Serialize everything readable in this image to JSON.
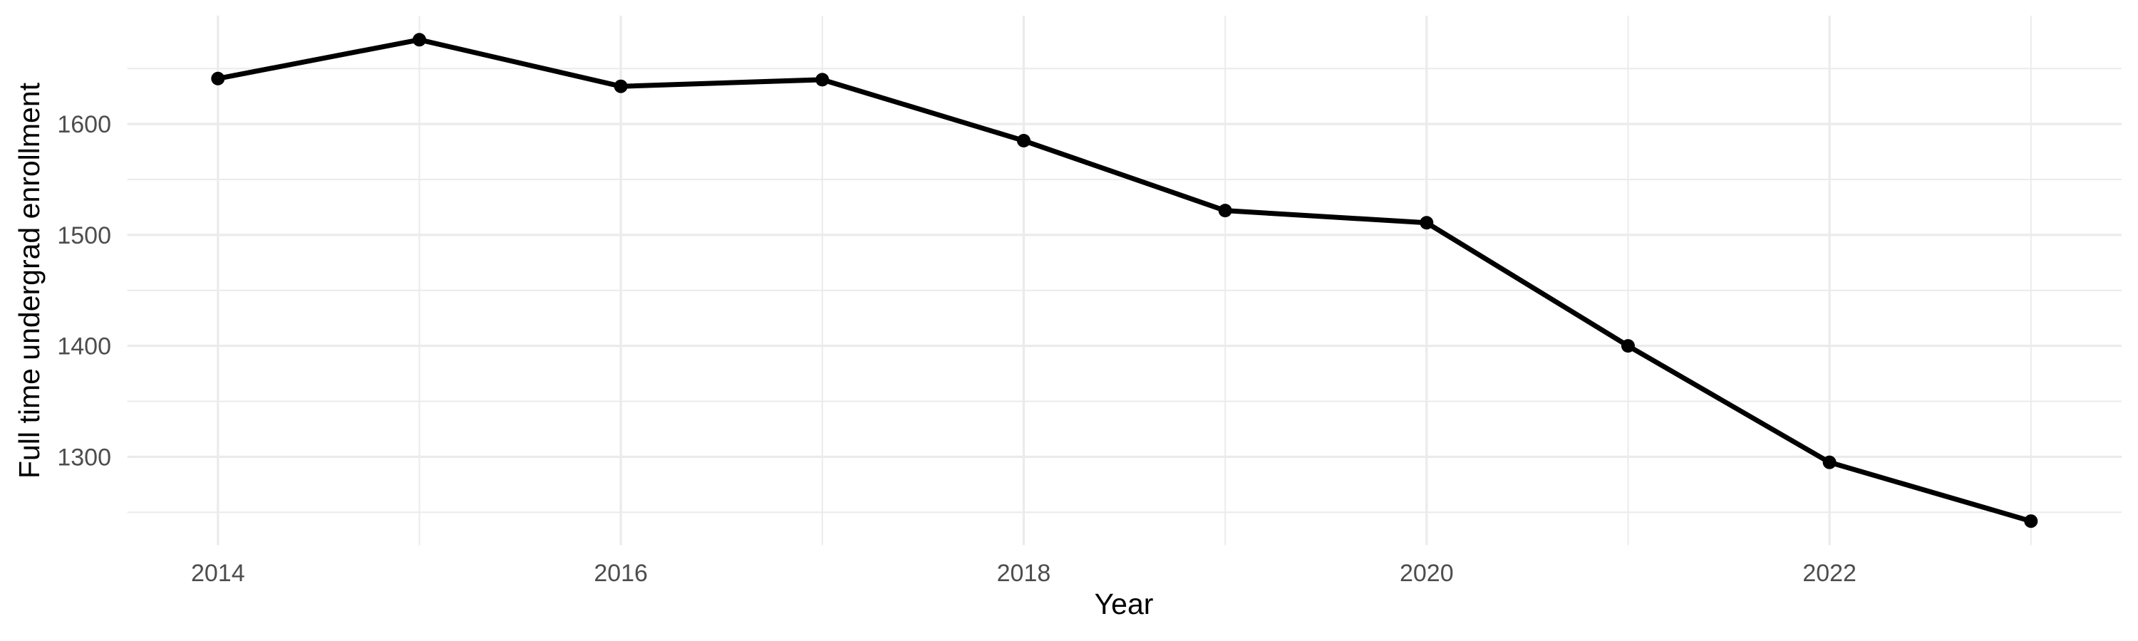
{
  "chart_data": {
    "type": "line",
    "title": "",
    "xlabel": "Year",
    "ylabel": "Full time undergrad enrollment",
    "x": [
      2014,
      2015,
      2016,
      2017,
      2018,
      2019,
      2020,
      2021,
      2022,
      2023
    ],
    "series": [
      {
        "name": "Full time undergrad enrollment",
        "values": [
          1641,
          1676,
          1634,
          1640,
          1585,
          1522,
          1511,
          1400,
          1295,
          1242
        ]
      }
    ],
    "x_major_ticks": [
      2014,
      2016,
      2018,
      2020,
      2022
    ],
    "x_major_tick_labels": [
      "2014",
      "2016",
      "2018",
      "2020",
      "2022"
    ],
    "x_minor_gridlines": [
      2015,
      2017,
      2019,
      2021,
      2023
    ],
    "y_major_ticks": [
      1300,
      1400,
      1500,
      1600
    ],
    "y_major_tick_labels": [
      "1300",
      "1400",
      "1500",
      "1600"
    ],
    "y_minor_gridlines": [
      1250,
      1350,
      1450,
      1550,
      1650
    ],
    "xlim": [
      2013.55,
      2023.45
    ],
    "ylim": [
      1220.3,
      1697.7
    ],
    "grid": "major+minor",
    "legend": "none",
    "colors": {
      "line": "#000000",
      "point": "#000000",
      "grid": "#ebebeb",
      "tick_label": "#4d4d4d",
      "axis_title": "#000000",
      "background": "#ffffff"
    }
  }
}
